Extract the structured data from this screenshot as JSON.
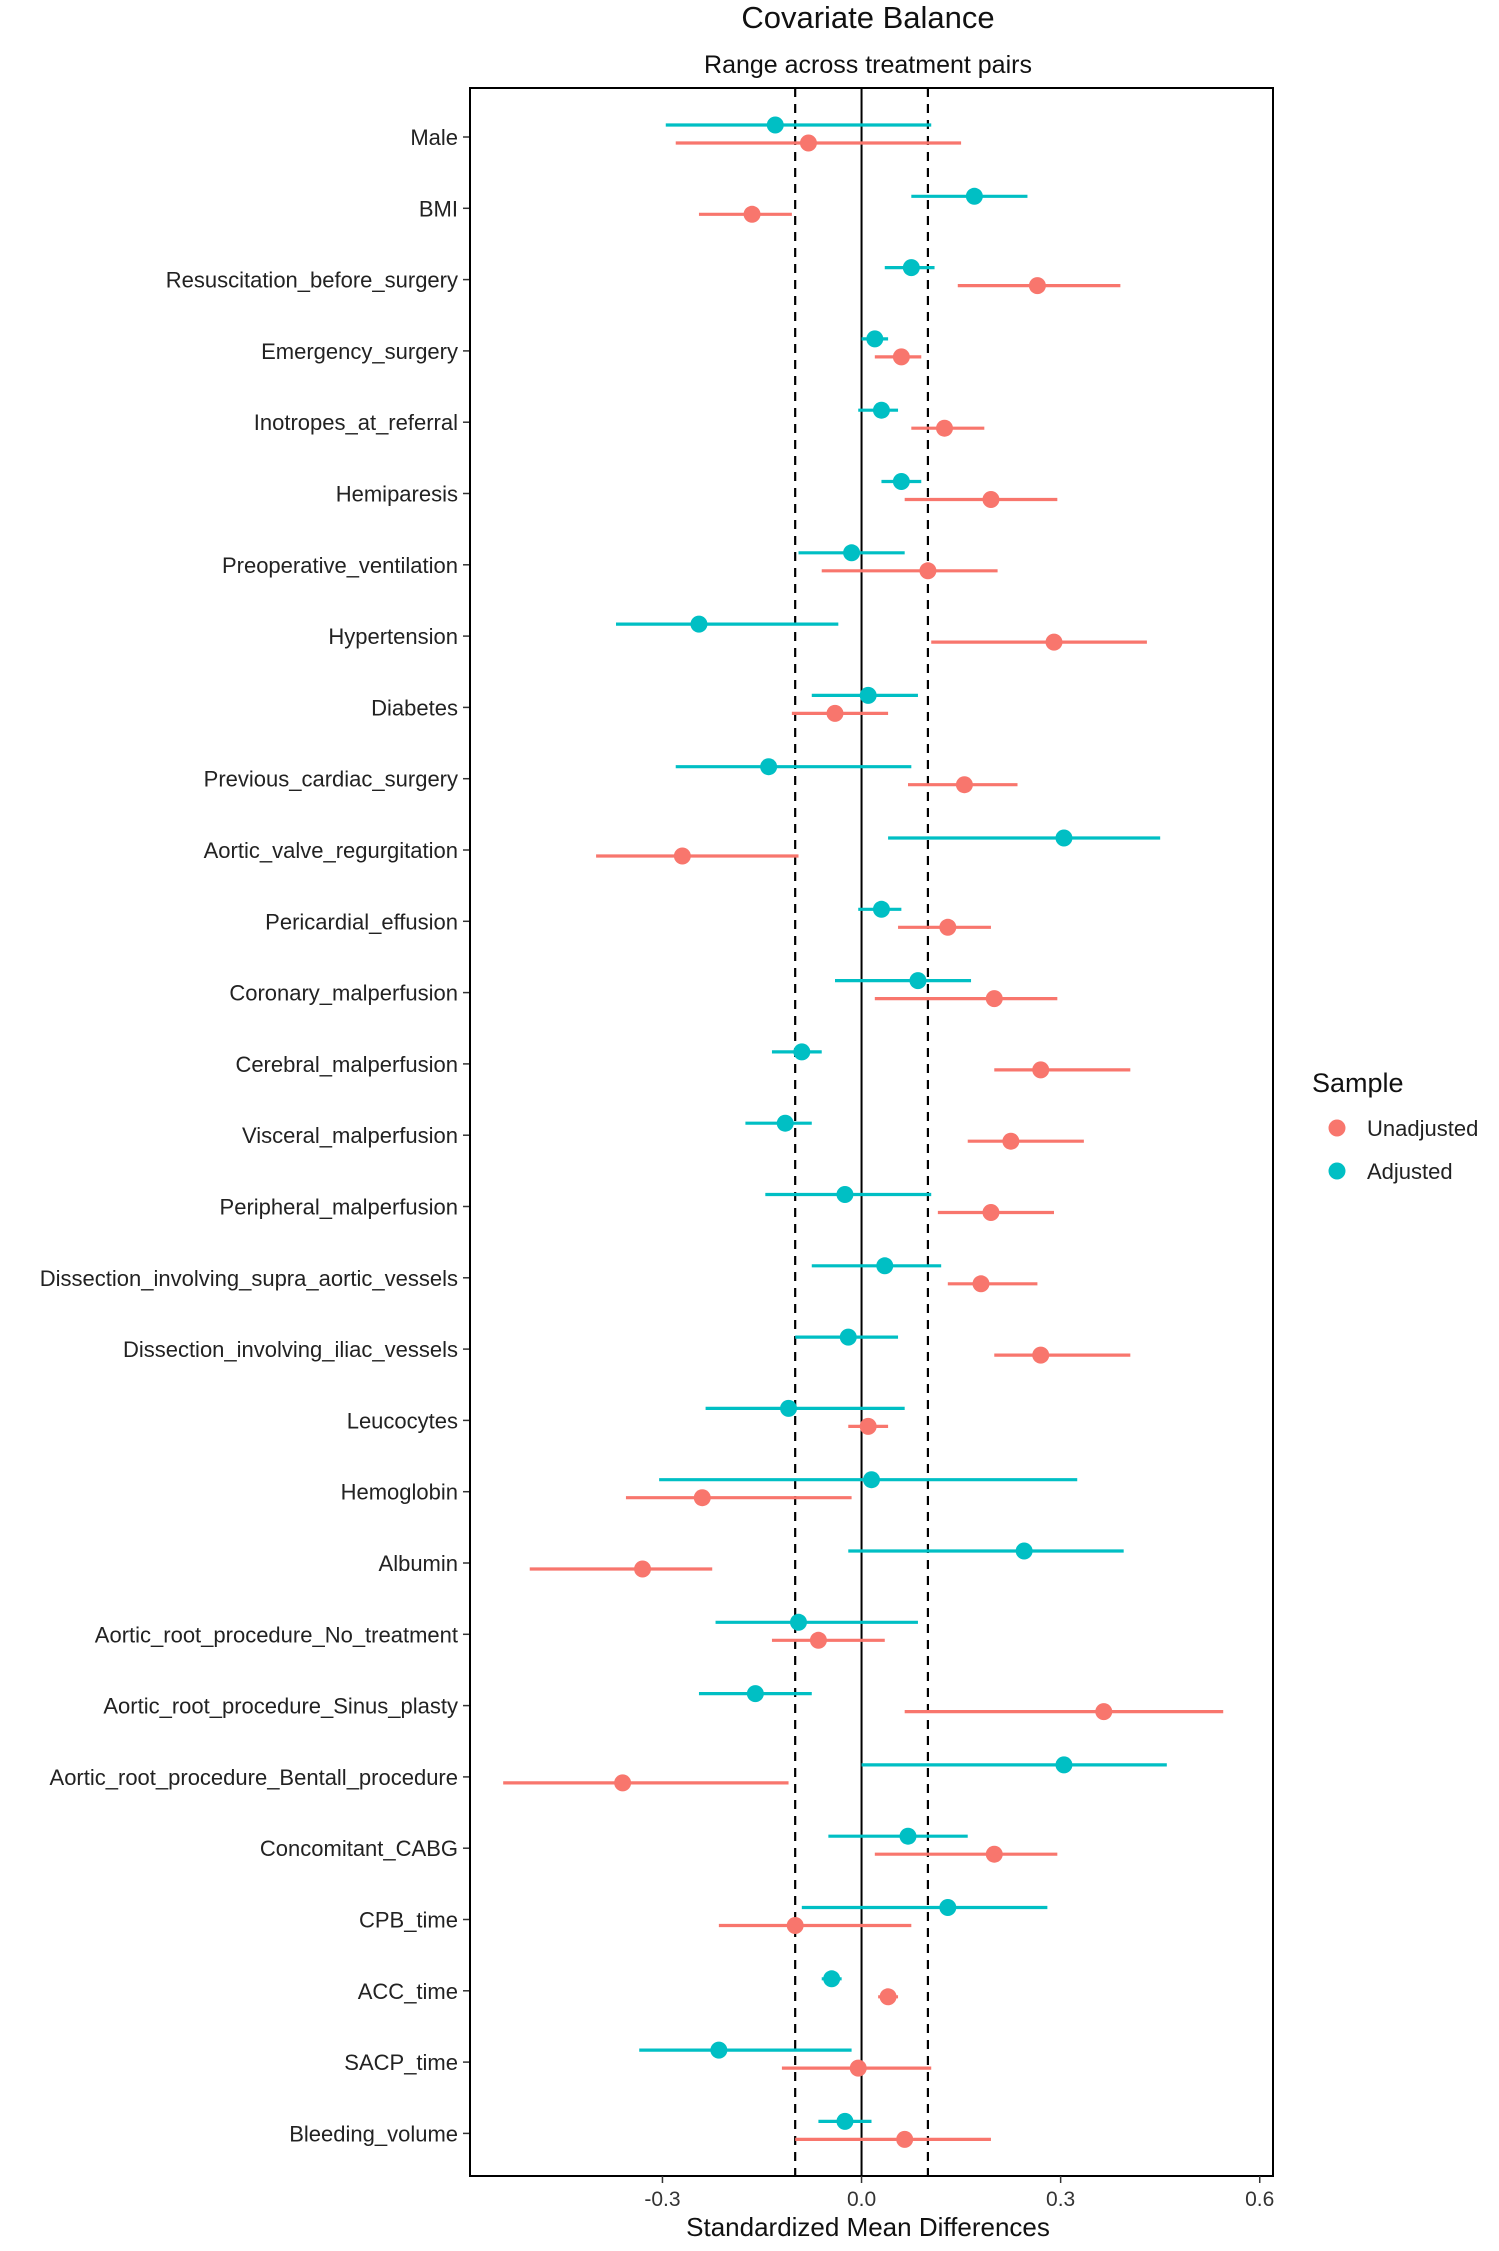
{
  "chart_data": {
    "type": "dot-range",
    "title": "Covariate Balance",
    "subtitle": "Range across treatment pairs",
    "xlabel": "Standardized Mean Differences",
    "xlim": [
      -0.59,
      0.62
    ],
    "xticks": [
      -0.3,
      0.0,
      0.3,
      0.6
    ],
    "xtick_labels": [
      "-0.3",
      "0.0",
      "0.3",
      "0.6"
    ],
    "reference_lines": {
      "solid": [
        0.0
      ],
      "dashed": [
        -0.1,
        0.1
      ]
    },
    "legend": {
      "title": "Sample",
      "position": "right",
      "entries": [
        {
          "name": "Unadjusted",
          "color": "#F8766D"
        },
        {
          "name": "Adjusted",
          "color": "#00BFC4"
        }
      ]
    },
    "categories": [
      "Male",
      "BMI",
      "Resuscitation_before_surgery",
      "Emergency_surgery",
      "Inotropes_at_referral",
      "Hemiparesis",
      "Preoperative_ventilation",
      "Hypertension",
      "Diabetes",
      "Previous_cardiac_surgery",
      "Aortic_valve_regurgitation",
      "Pericardial_effusion",
      "Coronary_malperfusion",
      "Cerebral_malperfusion",
      "Visceral_malperfusion",
      "Peripheral_malperfusion",
      "Dissection_involving_supra_aortic_vessels",
      "Dissection_involving_iliac_vessels",
      "Leucocytes",
      "Hemoglobin",
      "Albumin",
      "Aortic_root_procedure_No_treatment",
      "Aortic_root_procedure_Sinus_plasty",
      "Aortic_root_procedure_Bentall_procedure",
      "Concomitant_CABG",
      "CPB_time",
      "ACC_time",
      "SACP_time",
      "Bleeding_volume"
    ],
    "series": [
      {
        "name": "Unadjusted",
        "color": "#F8766D",
        "points": [
          [
            -0.08,
            -0.28,
            0.15
          ],
          [
            -0.165,
            -0.245,
            -0.105
          ],
          [
            0.265,
            0.145,
            0.39
          ],
          [
            0.06,
            0.02,
            0.09
          ],
          [
            0.125,
            0.075,
            0.185
          ],
          [
            0.195,
            0.065,
            0.295
          ],
          [
            0.1,
            -0.06,
            0.205
          ],
          [
            0.29,
            0.105,
            0.43
          ],
          [
            -0.04,
            -0.105,
            0.04
          ],
          [
            0.155,
            0.07,
            0.235
          ],
          [
            -0.27,
            -0.4,
            -0.095
          ],
          [
            0.13,
            0.055,
            0.195
          ],
          [
            0.2,
            0.02,
            0.295
          ],
          [
            0.27,
            0.2,
            0.405
          ],
          [
            0.225,
            0.16,
            0.335
          ],
          [
            0.195,
            0.115,
            0.29
          ],
          [
            0.18,
            0.13,
            0.265
          ],
          [
            0.27,
            0.2,
            0.405
          ],
          [
            0.01,
            -0.02,
            0.04
          ],
          [
            -0.24,
            -0.355,
            -0.015
          ],
          [
            -0.33,
            -0.5,
            -0.225
          ],
          [
            -0.065,
            -0.135,
            0.035
          ],
          [
            0.365,
            0.065,
            0.545
          ],
          [
            -0.36,
            -0.54,
            -0.11
          ],
          [
            0.2,
            0.02,
            0.295
          ],
          [
            -0.1,
            -0.215,
            0.075
          ],
          [
            0.04,
            0.025,
            0.055
          ],
          [
            -0.005,
            -0.12,
            0.105
          ],
          [
            0.065,
            -0.1,
            0.195
          ]
        ]
      },
      {
        "name": "Adjusted",
        "color": "#00BFC4",
        "points": [
          [
            -0.13,
            -0.295,
            0.105
          ],
          [
            0.17,
            0.075,
            0.25
          ],
          [
            0.075,
            0.035,
            0.11
          ],
          [
            0.02,
            0.0,
            0.04
          ],
          [
            0.03,
            -0.005,
            0.055
          ],
          [
            0.06,
            0.03,
            0.09
          ],
          [
            -0.015,
            -0.095,
            0.065
          ],
          [
            -0.245,
            -0.37,
            -0.035
          ],
          [
            0.01,
            -0.075,
            0.085
          ],
          [
            -0.14,
            -0.28,
            0.075
          ],
          [
            0.305,
            0.04,
            0.45
          ],
          [
            0.03,
            -0.005,
            0.06
          ],
          [
            0.085,
            -0.04,
            0.165
          ],
          [
            -0.09,
            -0.135,
            -0.06
          ],
          [
            -0.115,
            -0.175,
            -0.075
          ],
          [
            -0.025,
            -0.145,
            0.105
          ],
          [
            0.035,
            -0.075,
            0.12
          ],
          [
            -0.02,
            -0.1,
            0.055
          ],
          [
            -0.11,
            -0.235,
            0.065
          ],
          [
            0.015,
            -0.305,
            0.325
          ],
          [
            0.245,
            -0.02,
            0.395
          ],
          [
            -0.095,
            -0.22,
            0.085
          ],
          [
            -0.16,
            -0.245,
            -0.075
          ],
          [
            0.305,
            0.0,
            0.46
          ],
          [
            0.07,
            -0.05,
            0.16
          ],
          [
            0.13,
            -0.09,
            0.28
          ],
          [
            -0.045,
            -0.06,
            -0.03
          ],
          [
            -0.215,
            -0.335,
            -0.015
          ],
          [
            -0.025,
            -0.065,
            0.015
          ]
        ]
      }
    ]
  }
}
